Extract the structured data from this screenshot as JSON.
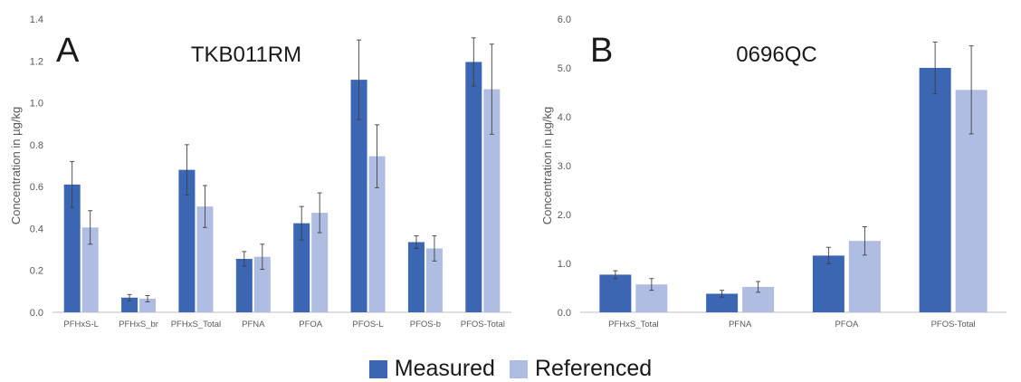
{
  "colors": {
    "measured": "#3b66b3",
    "referenced": "#b0bde3",
    "axis": "#bfbfbf",
    "error": "#404040"
  },
  "legend": [
    {
      "label": "Measured",
      "color": "#3b66b3"
    },
    {
      "label": "Referenced",
      "color": "#b0bde3"
    }
  ],
  "chart_data": [
    {
      "type": "bar",
      "panel": "A",
      "title": "TKB011RM",
      "ylabel": "Concentration in µg/kg",
      "ylim": [
        0,
        1.4
      ],
      "yticks": [
        "0.0",
        "0.2",
        "0.4",
        "0.6",
        "0.8",
        "1.0",
        "1.2",
        "1.4"
      ],
      "categories": [
        "PFHxS-L",
        "PFHxS_br",
        "PFHxS_Total",
        "PFNA",
        "PFOA",
        "PFOS-L",
        "PFOS-b",
        "PFOS-Total"
      ],
      "series": [
        {
          "name": "Measured",
          "values": [
            0.61,
            0.07,
            0.68,
            0.255,
            0.425,
            1.11,
            0.335,
            1.195
          ],
          "errors": [
            0.11,
            0.015,
            0.12,
            0.035,
            0.08,
            0.19,
            0.03,
            0.115
          ]
        },
        {
          "name": "Referenced",
          "values": [
            0.405,
            0.065,
            0.505,
            0.265,
            0.475,
            0.745,
            0.305,
            1.065
          ],
          "errors": [
            0.08,
            0.015,
            0.1,
            0.06,
            0.095,
            0.15,
            0.06,
            0.215
          ]
        }
      ],
      "grid": false,
      "legend_position": "bottom"
    },
    {
      "type": "bar",
      "panel": "B",
      "title": "0696QC",
      "ylabel": "Concentration in µg/kg",
      "ylim": [
        0,
        6.0
      ],
      "yticks": [
        "0.0",
        "1.0",
        "2.0",
        "3.0",
        "4.0",
        "5.0",
        "6.0"
      ],
      "categories": [
        "PFHxS_Total",
        "PFNA",
        "PFOA",
        "PFOS-Total"
      ],
      "series": [
        {
          "name": "Measured",
          "values": [
            0.77,
            0.38,
            1.16,
            5.0
          ],
          "errors": [
            0.08,
            0.07,
            0.17,
            0.53
          ]
        },
        {
          "name": "Referenced",
          "values": [
            0.57,
            0.52,
            1.46,
            4.55
          ],
          "errors": [
            0.12,
            0.11,
            0.29,
            0.9
          ]
        }
      ],
      "grid": false,
      "legend_position": "bottom"
    }
  ]
}
